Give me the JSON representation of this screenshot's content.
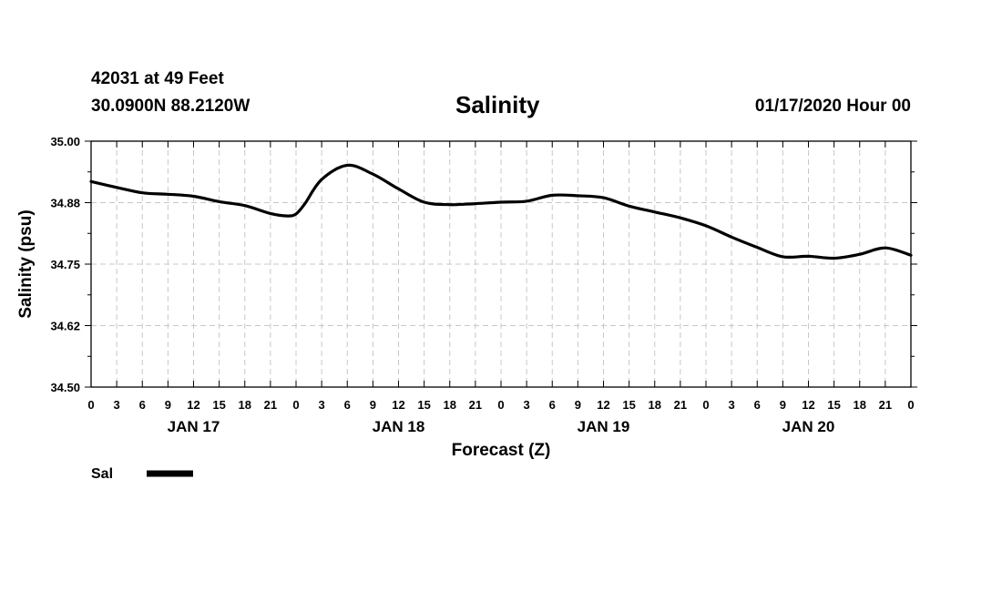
{
  "header": {
    "station": "42031 at 49 Feet",
    "coords": "30.0900N 88.2120W",
    "title": "Salinity",
    "run": "01/17/2020 Hour 00"
  },
  "chart_data": {
    "type": "line",
    "title": "Salinity",
    "xlabel": "Forecast (Z)",
    "ylabel": "Salinity (psu)",
    "ylim": [
      34.5,
      35.0
    ],
    "xlim": [
      0,
      96
    ],
    "y_ticks": [
      "35.00",
      "34.88",
      "34.75",
      "34.62",
      "34.50"
    ],
    "y_tick_values": [
      35.0,
      34.875,
      34.75,
      34.625,
      34.5
    ],
    "x_tick_labels": [
      "0",
      "3",
      "6",
      "9",
      "12",
      "15",
      "18",
      "21",
      "0",
      "3",
      "6",
      "9",
      "12",
      "15",
      "18",
      "21",
      "0",
      "3",
      "6",
      "9",
      "12",
      "15",
      "18",
      "21",
      "0",
      "3",
      "6",
      "9",
      "12",
      "15",
      "18",
      "21",
      "0"
    ],
    "date_labels": [
      {
        "label": "JAN 17",
        "hour": 12
      },
      {
        "label": "JAN 18",
        "hour": 36
      },
      {
        "label": "JAN 19",
        "hour": 60
      },
      {
        "label": "JAN 20",
        "hour": 84
      }
    ],
    "grid": true,
    "legend": [
      {
        "name": "Sal",
        "color": "#000000"
      }
    ],
    "series": [
      {
        "name": "Sal",
        "color": "#000000",
        "x": [
          0,
          3,
          6,
          9,
          12,
          15,
          18,
          21,
          23,
          24,
          25,
          27,
          30,
          33,
          36,
          39,
          42,
          45,
          48,
          51,
          54,
          57,
          60,
          63,
          66,
          69,
          72,
          75,
          78,
          81,
          84,
          87,
          90,
          93,
          96
        ],
        "values": [
          34.918,
          34.906,
          34.895,
          34.892,
          34.888,
          34.877,
          34.869,
          34.853,
          34.848,
          34.852,
          34.872,
          34.922,
          34.951,
          34.933,
          34.903,
          34.876,
          34.871,
          34.873,
          34.876,
          34.878,
          34.89,
          34.889,
          34.885,
          34.868,
          34.856,
          34.844,
          34.828,
          34.805,
          34.784,
          34.765,
          34.766,
          34.762,
          34.77,
          34.783,
          34.768
        ]
      }
    ]
  }
}
